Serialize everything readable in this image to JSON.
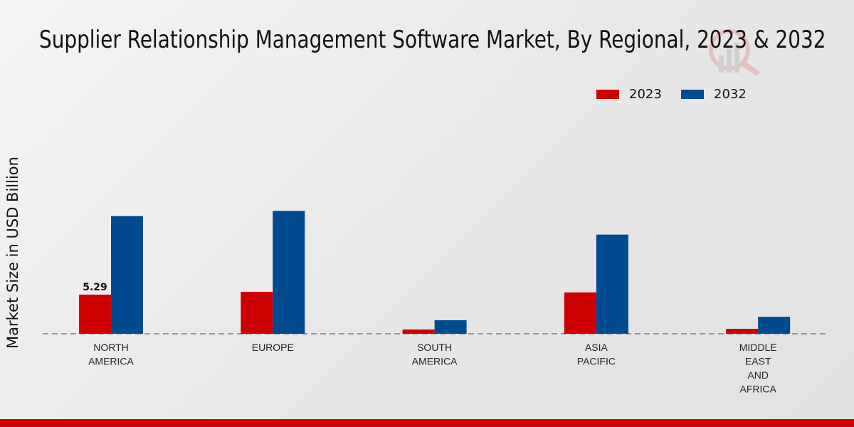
{
  "chart_data": {
    "type": "bar",
    "title": "Supplier Relationship Management Software Market, By Regional, 2023 & 2032",
    "xlabel": "",
    "ylabel": "Market Size in USD Billion",
    "categories": [
      "NORTH\nAMERICA",
      "EUROPE",
      "SOUTH\nAMERICA",
      "ASIA\nPACIFIC",
      "MIDDLE\nEAST\nAND\nAFRICA"
    ],
    "series": [
      {
        "name": "2023",
        "color": "#cc0000",
        "values": [
          5.29,
          5.67,
          0.58,
          5.58,
          0.67
        ]
      },
      {
        "name": "2032",
        "color": "#004a8f",
        "values": [
          15.9,
          16.6,
          1.83,
          13.4,
          2.3
        ]
      }
    ],
    "data_labels": [
      {
        "series": "2023",
        "category_index": 0,
        "text": "5.29"
      }
    ],
    "ylim": [
      0,
      20
    ],
    "grid": false,
    "legend_position": "top-right"
  }
}
